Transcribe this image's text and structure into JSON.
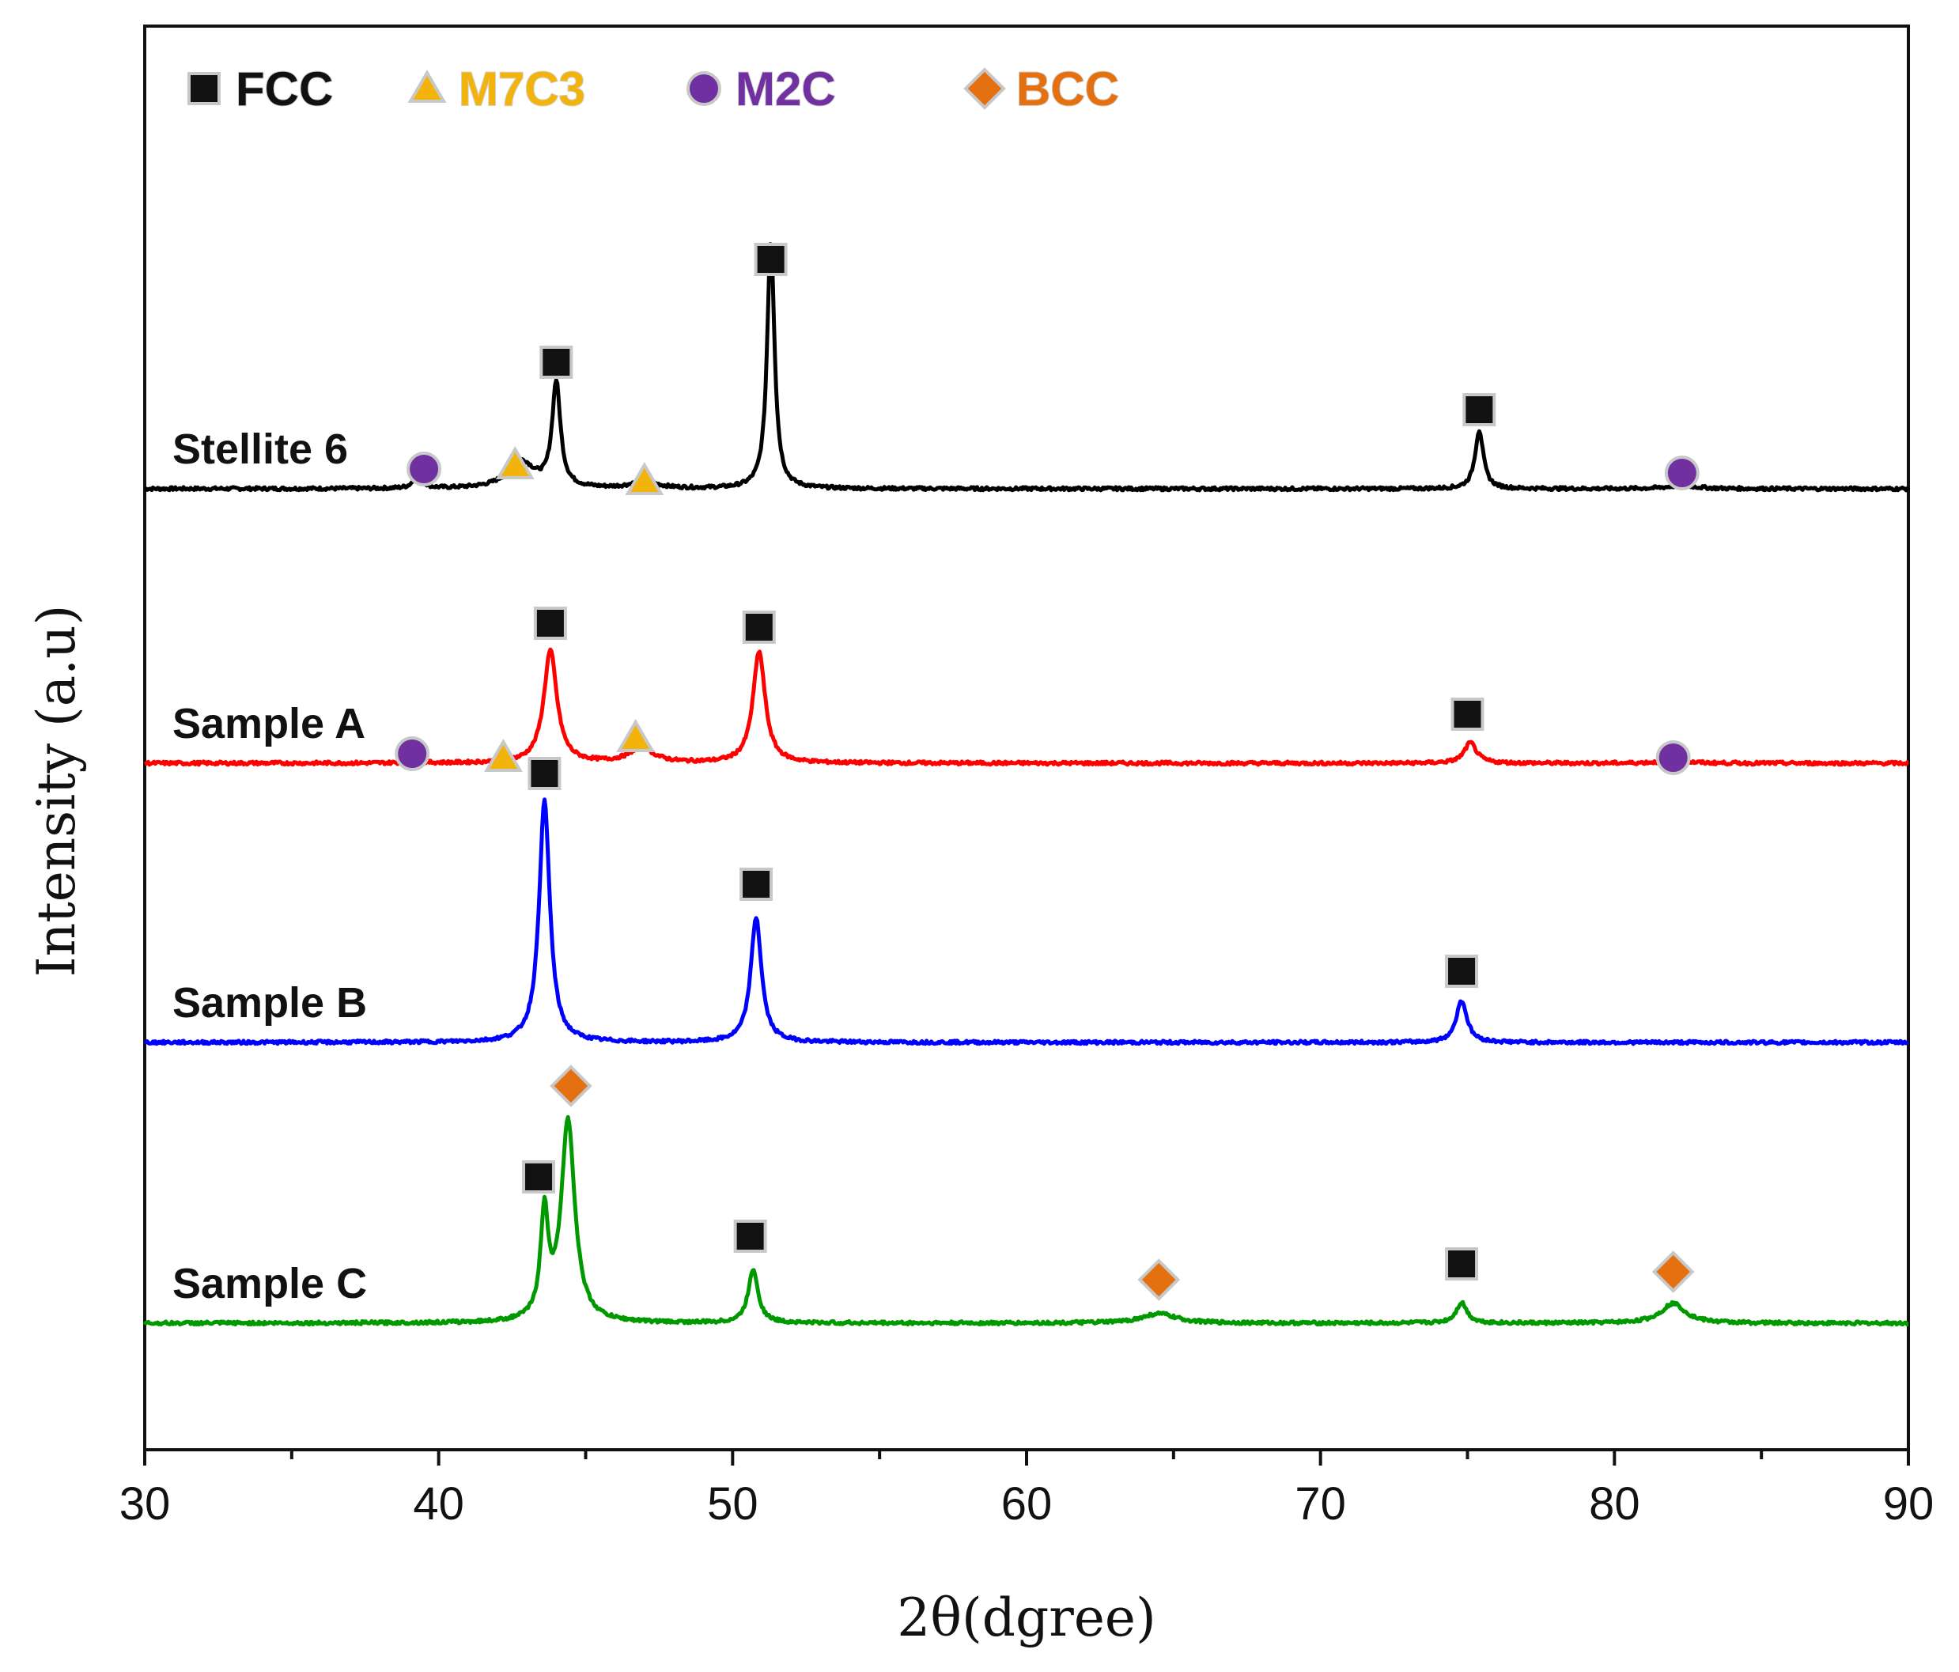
{
  "chart_data": {
    "type": "line",
    "title": "",
    "xlabel": "2θ(dgree)",
    "ylabel": "Intensity (a.u)",
    "xlim": [
      30,
      90
    ],
    "xticks": [
      30,
      40,
      50,
      60,
      70,
      80,
      90
    ],
    "legend": [
      {
        "name": "FCC",
        "marker": "square",
        "color": "#111111"
      },
      {
        "name": "M7C3",
        "marker": "triangle",
        "color": "#f2b40c"
      },
      {
        "name": "M2C",
        "marker": "circle",
        "color": "#7030a0"
      },
      {
        "name": "BCC",
        "marker": "diamond",
        "color": "#e5700f"
      }
    ],
    "series": [
      {
        "name": "Stellite 6",
        "color": "#000000",
        "baseline": 0.7,
        "peaks": [
          {
            "x": 39.3,
            "h": 0.022,
            "w": 0.15
          },
          {
            "x": 42.8,
            "h": 0.034,
            "w": 0.55
          },
          {
            "x": 44.0,
            "h": 0.132,
            "w": 0.17
          },
          {
            "x": 47.0,
            "h": 0.009,
            "w": 0.5
          },
          {
            "x": 51.3,
            "h": 0.315,
            "w": 0.15
          },
          {
            "x": 75.4,
            "h": 0.074,
            "w": 0.17
          },
          {
            "x": 82.3,
            "h": 0.004,
            "w": 0.6
          }
        ],
        "markers": [
          {
            "phase": "M2C",
            "x": 39.5,
            "y": 0.725
          },
          {
            "phase": "M7C3",
            "x": 42.6,
            "y": 0.73
          },
          {
            "phase": "FCC",
            "x": 44.0,
            "y": 0.86
          },
          {
            "phase": "M7C3",
            "x": 47.0,
            "y": 0.71
          },
          {
            "phase": "FCC",
            "x": 51.3,
            "y": 0.99
          },
          {
            "phase": "FCC",
            "x": 75.4,
            "y": 0.8
          },
          {
            "phase": "M2C",
            "x": 82.3,
            "y": 0.72
          }
        ]
      },
      {
        "name": "Sample A",
        "color": "#ff0000",
        "baseline": 0.353,
        "peaks": [
          {
            "x": 39.2,
            "h": 0.008,
            "w": 0.15
          },
          {
            "x": 43.8,
            "h": 0.142,
            "w": 0.27
          },
          {
            "x": 46.9,
            "h": 0.019,
            "w": 0.5
          },
          {
            "x": 50.9,
            "h": 0.141,
            "w": 0.25
          },
          {
            "x": 75.1,
            "h": 0.026,
            "w": 0.25
          },
          {
            "x": 82.0,
            "h": 0.003,
            "w": 0.6
          }
        ],
        "markers": [
          {
            "phase": "M2C",
            "x": 39.1,
            "y": 0.365
          },
          {
            "phase": "M7C3",
            "x": 42.2,
            "y": 0.36
          },
          {
            "phase": "FCC",
            "x": 43.8,
            "y": 0.53
          },
          {
            "phase": "M7C3",
            "x": 46.7,
            "y": 0.385
          },
          {
            "phase": "FCC",
            "x": 50.9,
            "y": 0.525
          },
          {
            "phase": "FCC",
            "x": 75.0,
            "y": 0.415
          },
          {
            "phase": "M2C",
            "x": 82.0,
            "y": 0.36
          }
        ]
      },
      {
        "name": "Sample B",
        "color": "#0000ff",
        "baseline": 0.0,
        "peaks": [
          {
            "x": 43.6,
            "h": 0.305,
            "w": 0.22
          },
          {
            "x": 50.8,
            "h": 0.158,
            "w": 0.22
          },
          {
            "x": 74.8,
            "h": 0.053,
            "w": 0.22
          }
        ],
        "markers": [
          {
            "phase": "FCC",
            "x": 43.6,
            "y": 0.34
          },
          {
            "phase": "FCC",
            "x": 50.8,
            "y": 0.2
          },
          {
            "phase": "FCC",
            "x": 74.8,
            "y": 0.09
          }
        ]
      },
      {
        "name": "Sample C",
        "color": "#009900",
        "baseline": -0.355,
        "peaks": [
          {
            "x": 43.6,
            "h": 0.13,
            "w": 0.16
          },
          {
            "x": 44.4,
            "h": 0.255,
            "w": 0.28
          },
          {
            "x": 50.7,
            "h": 0.068,
            "w": 0.2
          },
          {
            "x": 64.5,
            "h": 0.012,
            "w": 0.7
          },
          {
            "x": 74.8,
            "h": 0.026,
            "w": 0.22
          },
          {
            "x": 82.0,
            "h": 0.025,
            "w": 0.5
          }
        ],
        "markers": [
          {
            "phase": "FCC",
            "x": 43.4,
            "y": -0.17
          },
          {
            "phase": "BCC",
            "x": 44.5,
            "y": -0.055
          },
          {
            "phase": "FCC",
            "x": 50.6,
            "y": -0.245
          },
          {
            "phase": "BCC",
            "x": 64.5,
            "y": -0.3
          },
          {
            "phase": "FCC",
            "x": 74.8,
            "y": -0.28
          },
          {
            "phase": "BCC",
            "x": 82.0,
            "y": -0.29
          }
        ]
      }
    ]
  }
}
